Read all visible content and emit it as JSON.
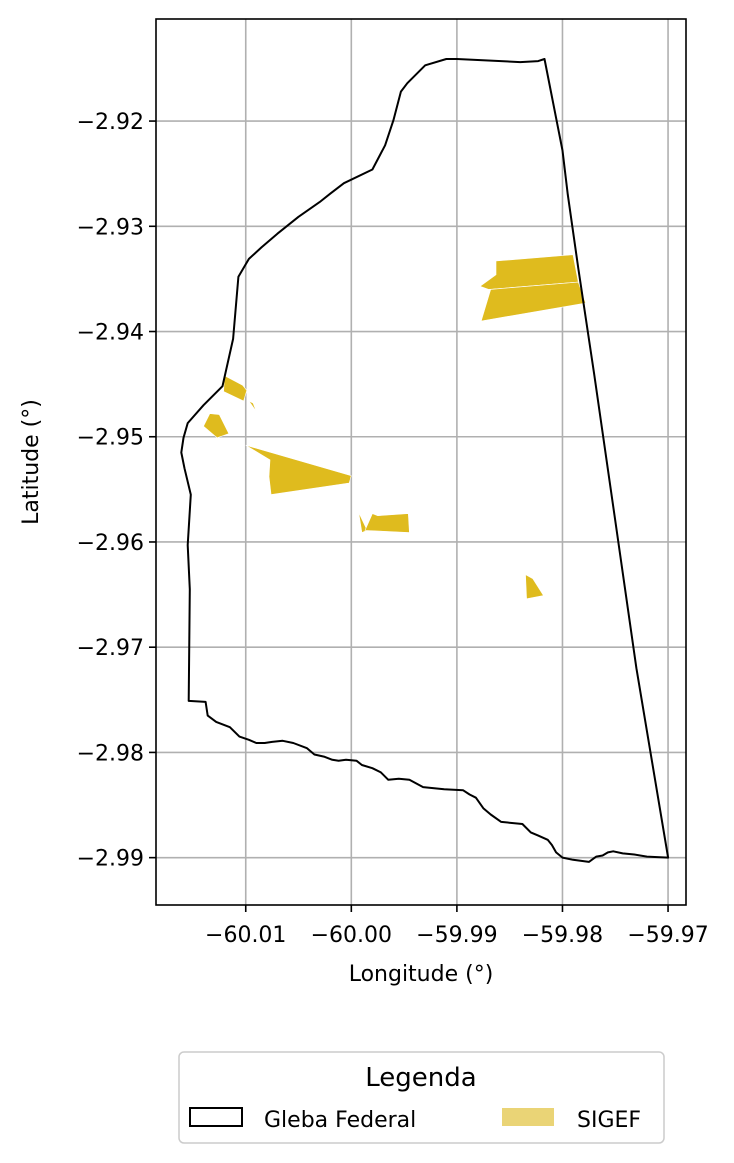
{
  "chart_data": {
    "type": "map",
    "xlabel": "Longitude (°)",
    "ylabel": "Latitude (°)",
    "xlim": [
      -60.0185,
      -59.9683
    ],
    "ylim": [
      -2.9945,
      -2.9103
    ],
    "grid": true,
    "x_ticks": [
      {
        "value": -60.01,
        "label": "−60.01"
      },
      {
        "value": -60.0,
        "label": "−60.00"
      },
      {
        "value": -59.99,
        "label": "−59.99"
      },
      {
        "value": -59.98,
        "label": "−59.98"
      },
      {
        "value": -59.97,
        "label": "−59.97"
      }
    ],
    "y_ticks": [
      {
        "value": -2.92,
        "label": "−2.92"
      },
      {
        "value": -2.93,
        "label": "−2.93"
      },
      {
        "value": -2.94,
        "label": "−2.94"
      },
      {
        "value": -2.95,
        "label": "−2.95"
      },
      {
        "value": -2.96,
        "label": "−2.96"
      },
      {
        "value": -2.97,
        "label": "−2.97"
      },
      {
        "value": -2.98,
        "label": "−2.98"
      },
      {
        "value": -2.99,
        "label": "−2.99"
      }
    ],
    "legend": {
      "title": "Legenda",
      "placement": "bottom-center",
      "entries": [
        {
          "label": "Gleba Federal",
          "style": "outline"
        },
        {
          "label": "SIGEF",
          "style": "fill"
        }
      ]
    },
    "colors": {
      "outline": "#000000",
      "sigef": "#dfbb1e",
      "sigef_legend": "#ead476",
      "grid": "#b0b0b0"
    },
    "gleba_federal": [
      [
        -59.9817,
        -2.9141
      ],
      [
        -59.98,
        -2.9228
      ],
      [
        -59.9795,
        -2.927
      ],
      [
        -59.9785,
        -2.934
      ],
      [
        -59.977,
        -2.944
      ],
      [
        -59.975,
        -2.958
      ],
      [
        -59.973,
        -2.972
      ],
      [
        -59.97,
        -2.99
      ],
      [
        -59.972,
        -2.9899
      ],
      [
        -59.9732,
        -2.9897
      ],
      [
        -59.9743,
        -2.9896
      ],
      [
        -59.9752,
        -2.9894
      ],
      [
        -59.9757,
        -2.9895
      ],
      [
        -59.9762,
        -2.9898
      ],
      [
        -59.9768,
        -2.9899
      ],
      [
        -59.9775,
        -2.9904
      ],
      [
        -59.979,
        -2.9902
      ],
      [
        -59.98,
        -2.99
      ],
      [
        -59.9806,
        -2.9895
      ],
      [
        -59.981,
        -2.9888
      ],
      [
        -59.9814,
        -2.9883
      ],
      [
        -59.9823,
        -2.9879
      ],
      [
        -59.983,
        -2.9876
      ],
      [
        -59.9838,
        -2.9868
      ],
      [
        -59.9858,
        -2.9866
      ],
      [
        -59.9868,
        -2.9859
      ],
      [
        -59.9875,
        -2.9853
      ],
      [
        -59.9882,
        -2.9843
      ],
      [
        -59.9888,
        -2.984
      ],
      [
        -59.9894,
        -2.9836
      ],
      [
        -59.9912,
        -2.9835
      ],
      [
        -59.9932,
        -2.9833
      ],
      [
        -59.9945,
        -2.9826
      ],
      [
        -59.9955,
        -2.9825
      ],
      [
        -59.9965,
        -2.9826
      ],
      [
        -59.9972,
        -2.9819
      ],
      [
        -59.998,
        -2.9815
      ],
      [
        -59.999,
        -2.9812
      ],
      [
        -59.9995,
        -2.9808
      ],
      [
        -60.0005,
        -2.9807
      ],
      [
        -60.0012,
        -2.9808
      ],
      [
        -60.0018,
        -2.9807
      ],
      [
        -60.0026,
        -2.9804
      ],
      [
        -60.0035,
        -2.9802
      ],
      [
        -60.0042,
        -2.9796
      ],
      [
        -60.0055,
        -2.9791
      ],
      [
        -60.0065,
        -2.9789
      ],
      [
        -60.0075,
        -2.979
      ],
      [
        -60.0082,
        -2.9791
      ],
      [
        -60.009,
        -2.9791
      ],
      [
        -60.0097,
        -2.9788
      ],
      [
        -60.0106,
        -2.9785
      ],
      [
        -60.0115,
        -2.9776
      ],
      [
        -60.0128,
        -2.9771
      ],
      [
        -60.0136,
        -2.9765
      ],
      [
        -60.0138,
        -2.9752
      ],
      [
        -60.0154,
        -2.9751
      ],
      [
        -60.0153,
        -2.9645
      ],
      [
        -60.0155,
        -2.9603
      ],
      [
        -60.0152,
        -2.9555
      ],
      [
        -60.0158,
        -2.953
      ],
      [
        -60.0161,
        -2.9515
      ],
      [
        -60.0159,
        -2.9501
      ],
      [
        -60.0155,
        -2.9487
      ],
      [
        -60.014,
        -2.947
      ],
      [
        -60.0122,
        -2.9452
      ],
      [
        -60.0112,
        -2.9407
      ],
      [
        -60.0107,
        -2.9348
      ],
      [
        -60.0097,
        -2.9331
      ],
      [
        -60.0085,
        -2.932
      ],
      [
        -60.007,
        -2.9307
      ],
      [
        -60.005,
        -2.9291
      ],
      [
        -60.003,
        -2.9277
      ],
      [
        -60.002,
        -2.9269
      ],
      [
        -60.0007,
        -2.9259
      ],
      [
        -59.998,
        -2.9246
      ],
      [
        -59.9968,
        -2.9223
      ],
      [
        -59.996,
        -2.9199
      ],
      [
        -59.9953,
        -2.9172
      ],
      [
        -59.9947,
        -2.9164
      ],
      [
        -59.993,
        -2.9147
      ],
      [
        -59.991,
        -2.9141
      ],
      [
        -59.99,
        -2.9141
      ],
      [
        -59.984,
        -2.9144
      ],
      [
        -59.9823,
        -2.9143
      ],
      [
        -59.9817,
        -2.9141
      ]
    ],
    "sigef_parcels": [
      [
        [
          -59.9863,
          -2.9333
        ],
        [
          -59.979,
          -2.9327
        ],
        [
          -59.9785,
          -2.9353
        ],
        [
          -59.987,
          -2.936
        ],
        [
          -59.9878,
          -2.9357
        ],
        [
          -59.9863,
          -2.9346
        ]
      ],
      [
        [
          -59.9868,
          -2.936
        ],
        [
          -59.9785,
          -2.9353
        ],
        [
          -59.9778,
          -2.9373
        ],
        [
          -59.9877,
          -2.939
        ]
      ],
      [
        [
          -60.012,
          -2.9442
        ],
        [
          -60.0103,
          -2.9451
        ],
        [
          -60.0099,
          -2.9456
        ],
        [
          -60.0102,
          -2.9466
        ],
        [
          -60.0121,
          -2.9457
        ]
      ],
      [
        [
          -60.0097,
          -2.9466
        ],
        [
          -60.009,
          -2.9476
        ],
        [
          -60.0093,
          -2.9468
        ]
      ],
      [
        [
          -60.014,
          -2.949
        ],
        [
          -60.0134,
          -2.9478
        ],
        [
          -60.0125,
          -2.9479
        ],
        [
          -60.0116,
          -2.9497
        ],
        [
          -60.0127,
          -2.9501
        ]
      ],
      [
        [
          -60.01,
          -2.9508
        ],
        [
          -60.0077,
          -2.9522
        ],
        [
          -60.0078,
          -2.9538
        ],
        [
          -60.0076,
          -2.9555
        ],
        [
          -60.0002,
          -2.9544
        ],
        [
          -60.0,
          -2.9537
        ]
      ],
      [
        [
          -59.9993,
          -2.9572
        ],
        [
          -59.9985,
          -2.9589
        ],
        [
          -59.999,
          -2.9591
        ]
      ],
      [
        [
          -59.998,
          -2.9573
        ],
        [
          -59.9987,
          -2.9589
        ],
        [
          -59.9945,
          -2.9591
        ],
        [
          -59.9946,
          -2.9573
        ],
        [
          -59.9975,
          -2.9575
        ]
      ],
      [
        [
          -59.9835,
          -2.9631
        ],
        [
          -59.9828,
          -2.9635
        ],
        [
          -59.9818,
          -2.9651
        ],
        [
          -59.9834,
          -2.9654
        ]
      ]
    ]
  }
}
